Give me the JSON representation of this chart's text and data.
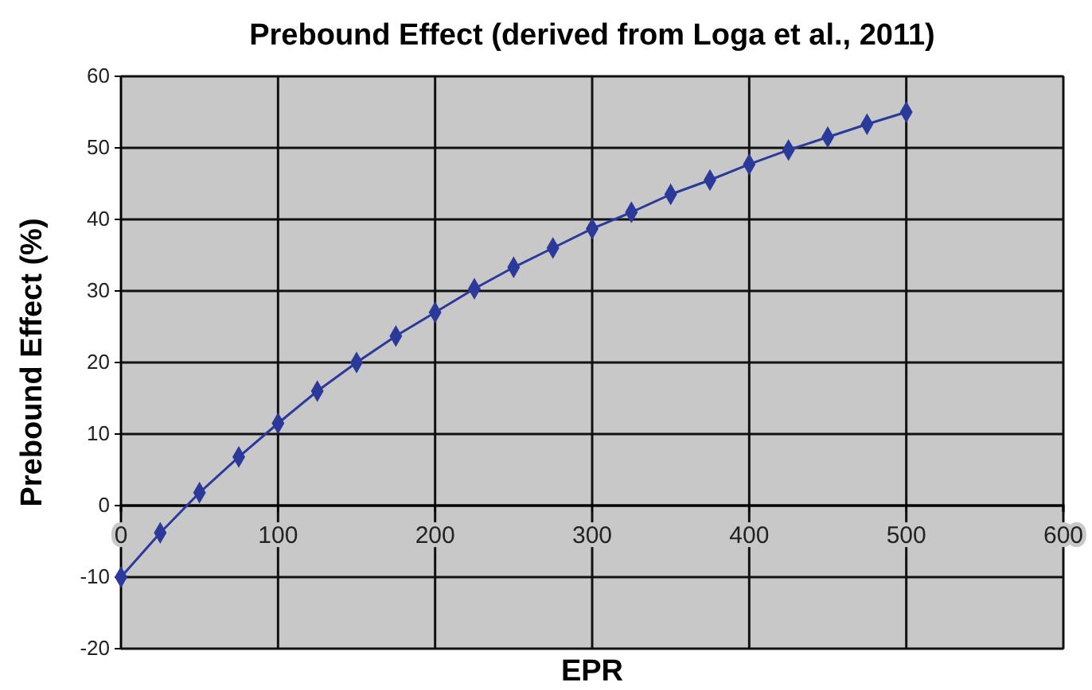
{
  "chart_data": {
    "type": "line",
    "title": "Prebound Effect (derived from Loga et al., 2011)",
    "xlabel": "EPR",
    "ylabel": "Prebound Effect (%)",
    "x": [
      0,
      25,
      50,
      75,
      100,
      125,
      150,
      175,
      200,
      225,
      250,
      275,
      300,
      325,
      350,
      375,
      400,
      425,
      450,
      475,
      500
    ],
    "series": [
      {
        "color": "#2b3a9a",
        "values": [
          -10,
          -3.8,
          1.8,
          6.8,
          11.5,
          16,
          20,
          23.7,
          27,
          30.3,
          33.3,
          36,
          38.7,
          41,
          43.5,
          45.5,
          47.7,
          49.7,
          51.5,
          53.3,
          55
        ]
      }
    ],
    "xlim": [
      0,
      600
    ],
    "xticks": [
      0,
      100,
      200,
      300,
      400,
      500,
      600
    ],
    "ylim": [
      -20,
      60
    ],
    "yticks": [
      -20,
      -10,
      0,
      10,
      20,
      30,
      40,
      50,
      60
    ],
    "grid": true,
    "marker": "diamond",
    "line_style": "solid"
  }
}
